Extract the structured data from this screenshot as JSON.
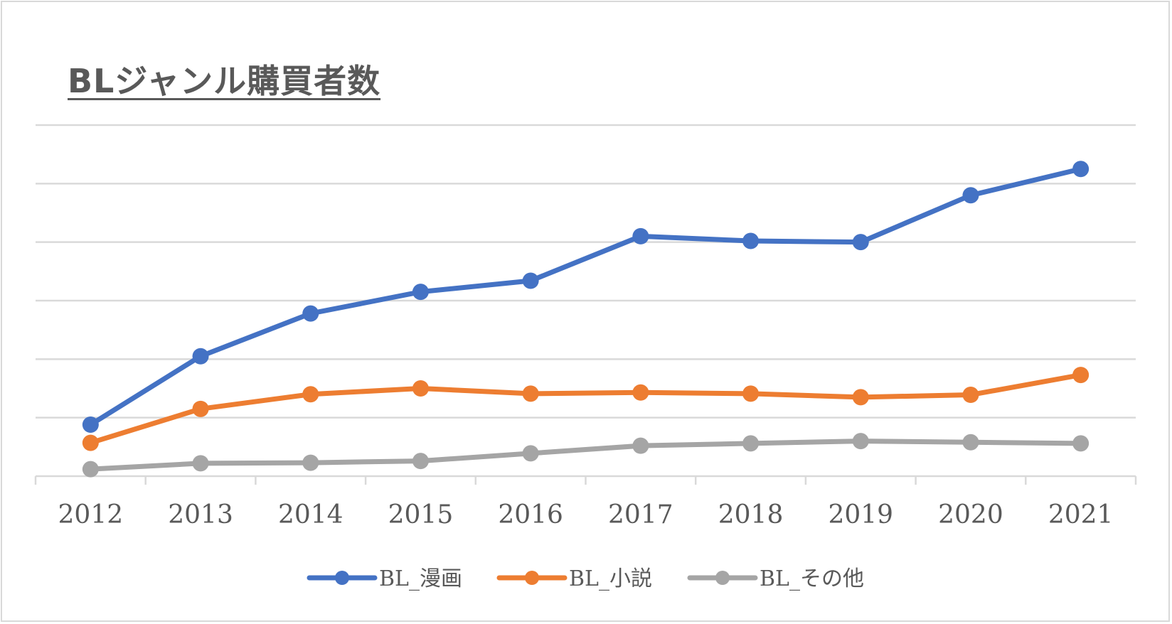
{
  "chart_data": {
    "type": "line",
    "title": "BLジャンル購買者数",
    "categories": [
      "2012",
      "2013",
      "2014",
      "2015",
      "2016",
      "2017",
      "2018",
      "2019",
      "2020",
      "2021"
    ],
    "ylim": [
      0,
      6
    ],
    "grid": true,
    "legend_position": "bottom",
    "series": [
      {
        "name": "BL_漫画",
        "color": "#4472c4",
        "values": [
          0.88,
          2.05,
          2.78,
          3.15,
          3.34,
          4.1,
          4.02,
          4.0,
          4.8,
          5.25
        ]
      },
      {
        "name": "BL_小説",
        "color": "#ed7d31",
        "values": [
          0.57,
          1.15,
          1.4,
          1.5,
          1.41,
          1.43,
          1.41,
          1.35,
          1.39,
          1.73
        ]
      },
      {
        "name": "BL_その他",
        "color": "#a5a5a5",
        "values": [
          0.12,
          0.22,
          0.23,
          0.26,
          0.39,
          0.52,
          0.56,
          0.6,
          0.58,
          0.56
        ]
      }
    ]
  }
}
